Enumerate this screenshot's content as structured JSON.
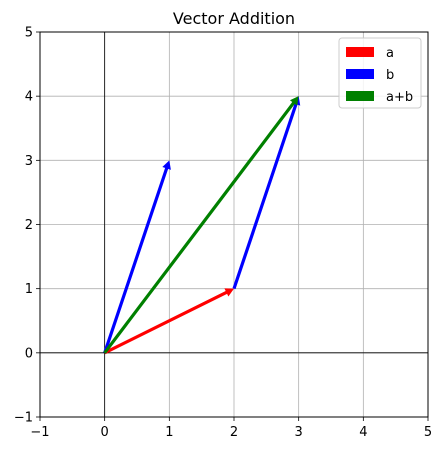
{
  "chart_data": {
    "type": "quiver",
    "title": "Vector Addition",
    "xlabel": "",
    "ylabel": "",
    "xlim": [
      -1,
      5
    ],
    "ylim": [
      -1,
      5
    ],
    "xticks": [
      "−1",
      "0",
      "1",
      "2",
      "3",
      "4",
      "5"
    ],
    "yticks": [
      "−1",
      "0",
      "1",
      "2",
      "3",
      "4",
      "5"
    ],
    "xtick_values": [
      -1,
      0,
      1,
      2,
      3,
      4,
      5
    ],
    "ytick_values": [
      -1,
      0,
      1,
      2,
      3,
      4,
      5
    ],
    "grid": true,
    "legend_position": "top-right",
    "reference_lines": {
      "x": 0,
      "y": 0
    },
    "series": [
      {
        "name": "a",
        "color": "#ff0000",
        "vectors": [
          {
            "x0": 0,
            "y0": 0,
            "dx": 2,
            "dy": 1
          }
        ]
      },
      {
        "name": "b",
        "color": "#0000ff",
        "vectors": [
          {
            "x0": 0,
            "y0": 0,
            "dx": 1,
            "dy": 3
          },
          {
            "x0": 2,
            "y0": 1,
            "dx": 1,
            "dy": 3
          }
        ]
      },
      {
        "name": "a+b",
        "color": "#008000",
        "vectors": [
          {
            "x0": 0,
            "y0": 0,
            "dx": 3,
            "dy": 4
          }
        ]
      }
    ]
  }
}
